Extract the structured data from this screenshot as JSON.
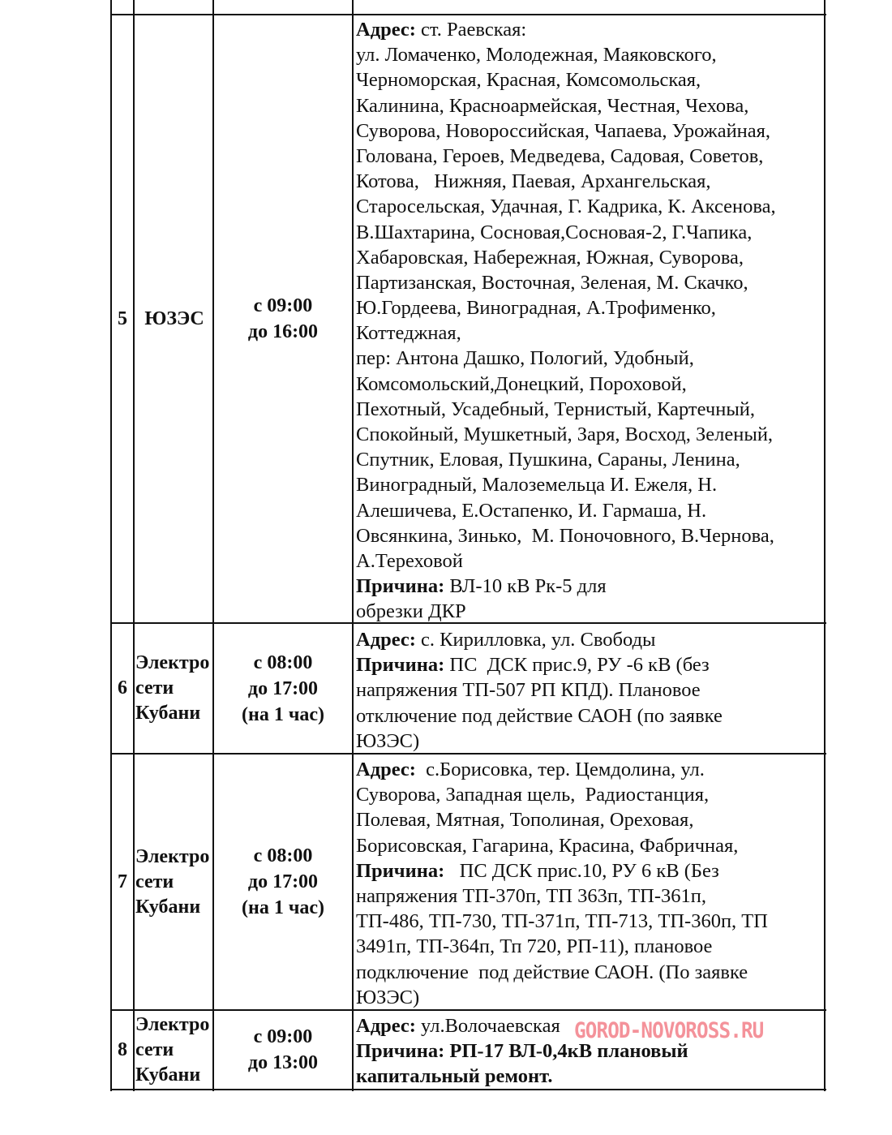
{
  "rows": [
    {
      "num": "5",
      "org": [
        "ЮЗЭС"
      ],
      "time": [
        "с 09:00",
        "до 16:00"
      ],
      "lines": [
        [
          {
            "b": true,
            "t": "Адрес:"
          },
          {
            "t": " ст. Раевская:"
          }
        ],
        [
          {
            "t": "ул. Ломаченко, Молодежная, Маяковского,"
          }
        ],
        [
          {
            "t": "Черноморская, Красная, Комсомольская,"
          }
        ],
        [
          {
            "t": "Калинина, Красноармейская, Честная, Чехова,"
          }
        ],
        [
          {
            "t": "Суворова, Новороссийская, Чапаева, Урожайная,"
          }
        ],
        [
          {
            "t": "Голована, Героев, Медведева, Садовая, Советов,"
          }
        ],
        [
          {
            "t": "Котова,   Нижняя, Паевая, Архангельская,"
          }
        ],
        [
          {
            "t": "Старосельская, Удачная, Г. Кадрика, К. Аксенова,"
          }
        ],
        [
          {
            "t": "В.Шахтарина, Сосновая,Сосновая-2, Г.Чапика,"
          }
        ],
        [
          {
            "t": "Хабаровская, Набережная, Южная, Суворова,"
          }
        ],
        [
          {
            "t": "Партизанская, Восточная, Зеленая, М. Скачко,"
          }
        ],
        [
          {
            "t": "Ю.Гордеева, Виноградная, А.Трофименко,"
          }
        ],
        [
          {
            "t": "Коттеджная,"
          }
        ],
        [
          {
            "t": "пер: Антона Дашко, Пологий, Удобный,"
          }
        ],
        [
          {
            "t": "Комсомольский,Донецкий, Пороховой,"
          }
        ],
        [
          {
            "t": "Пехотный, Усадебный, Тернистый, Картечный,"
          }
        ],
        [
          {
            "t": "Спокойный, Мушкетный, Заря, Восход, Зеленый,"
          }
        ],
        [
          {
            "t": "Спутник, Еловая, Пушкина, Сараны, Ленина,"
          }
        ],
        [
          {
            "t": "Виноградный, Малоземельца И. Ежеля, Н."
          }
        ],
        [
          {
            "t": "Алешичева, Е.Остапенко, И. Гармаша, Н."
          }
        ],
        [
          {
            "t": "Овсянкина, Зинько,  М. Поночовного, В.Чернова,"
          }
        ],
        [
          {
            "t": "А.Тереховой"
          }
        ],
        [
          {
            "b": true,
            "t": "Причина:"
          },
          {
            "t": " ВЛ-10 кВ Рк-5 для"
          }
        ],
        [
          {
            "t": "обрезки ДКР"
          }
        ]
      ]
    },
    {
      "num": "6",
      "org": [
        "Электро",
        "сети",
        "Кубани"
      ],
      "time": [
        "с 08:00",
        "до 17:00",
        "(на 1 час)"
      ],
      "lines": [
        [
          {
            "b": true,
            "t": "Адрес:"
          },
          {
            "t": " с. Кирилловка, ул. Свободы"
          }
        ],
        [
          {
            "b": true,
            "t": "Причина:"
          },
          {
            "t": " ПС  ДСК прис.9, РУ -6 кВ (без"
          }
        ],
        [
          {
            "t": "напряжения ТП-507 РП КПД). Плановое"
          }
        ],
        [
          {
            "t": "отключение под действие САОН (по заявке"
          }
        ],
        [
          {
            "t": "ЮЗЭС)"
          }
        ]
      ]
    },
    {
      "num": "7",
      "org": [
        "Электро",
        "сети",
        "Кубани"
      ],
      "time": [
        "с 08:00",
        "до 17:00",
        "(на 1 час)"
      ],
      "lines": [
        [
          {
            "b": true,
            "t": "Адрес:"
          },
          {
            "t": "  с.Борисовка, тер. Цемдолина, ул."
          }
        ],
        [
          {
            "t": "Суворова, Западная щель,  Радиостанция,"
          }
        ],
        [
          {
            "t": "Полевая, Мятная, Тополиная, Ореховая,"
          }
        ],
        [
          {
            "t": "Борисовская, Гагарина, Красина, Фабричная,"
          }
        ],
        [
          {
            "b": true,
            "t": "Причина:"
          },
          {
            "t": "   ПС ДСК прис.10, РУ 6 кВ (Без"
          }
        ],
        [
          {
            "t": "напряжения ТП-370п, ТП 363п, ТП-361п,"
          }
        ],
        [
          {
            "t": "ТП-486, ТП-730, ТП-371п, ТП-713, ТП-360п, ТП"
          }
        ],
        [
          {
            "t": "3491п, ТП-364п, Тп 720, РП-11), плановое"
          }
        ],
        [
          {
            "t": "подключение  под действие САОН. (По заявке"
          }
        ],
        [
          {
            "t": "ЮЗЭС)"
          }
        ]
      ]
    },
    {
      "num": "8",
      "org": [
        "Электро",
        "сети",
        "Кубани"
      ],
      "time": [
        "с 09:00",
        "до 13:00"
      ],
      "lines": [
        [
          {
            "b": true,
            "t": "Адрес:"
          },
          {
            "t": " ул.Волочаевская"
          }
        ],
        [
          {
            "b": true,
            "t": "Причина: РП-17 ВЛ-0,4кВ плановый"
          }
        ],
        [
          {
            "b": true,
            "t": "капитальный ремонт."
          }
        ]
      ]
    }
  ],
  "watermark": "GOROD-NOVOROSS.RU",
  "watermark_color": "#f06e78"
}
